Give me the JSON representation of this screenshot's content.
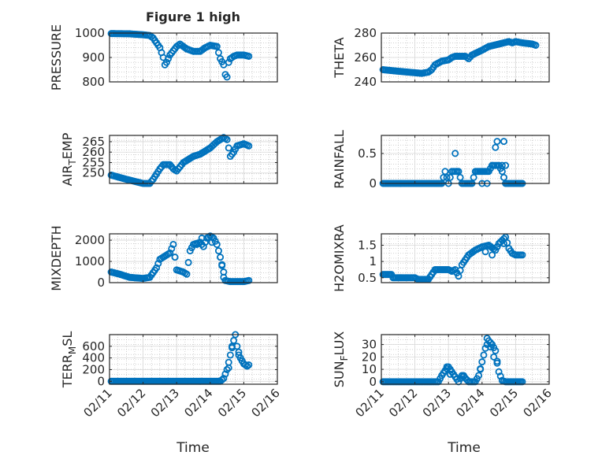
{
  "figure_title": "Figure 1 high",
  "marker_color": "#0072BD",
  "axis_color": "#262626",
  "grid_color": "#b4b4b4",
  "x_title": "Time",
  "x_ticks": [
    "02/11",
    "02/12",
    "02/13",
    "02/14",
    "02/15",
    "02/16"
  ],
  "chart_data": [
    {
      "id": "pressure",
      "type": "scatter",
      "col": 0,
      "row": 0,
      "ylabel": "PRESSURE",
      "xlim": [
        0,
        5
      ],
      "ylim": [
        800,
        1000
      ],
      "yticks": [
        800,
        900,
        1000
      ],
      "y_tick_labels": [
        "800",
        "900",
        "1000"
      ],
      "anchors": [
        [
          0.05,
          998
        ],
        [
          0.6,
          997
        ],
        [
          1.0,
          993
        ],
        [
          1.2,
          990
        ],
        [
          1.3,
          980
        ],
        [
          1.4,
          960
        ],
        [
          1.5,
          940
        ],
        [
          1.6,
          900
        ],
        [
          1.65,
          870
        ],
        [
          1.7,
          880
        ],
        [
          1.8,
          910
        ],
        [
          2.0,
          945
        ],
        [
          2.1,
          955
        ],
        [
          2.3,
          935
        ],
        [
          2.5,
          925
        ],
        [
          2.7,
          925
        ],
        [
          2.85,
          940
        ],
        [
          3.0,
          950
        ],
        [
          3.2,
          945
        ],
        [
          3.3,
          895
        ],
        [
          3.4,
          870
        ],
        [
          3.45,
          830
        ],
        [
          3.5,
          820
        ],
        [
          3.55,
          880
        ],
        [
          3.6,
          895
        ],
        [
          3.7,
          905
        ],
        [
          3.8,
          910
        ],
        [
          4.0,
          910
        ],
        [
          4.15,
          905
        ]
      ]
    },
    {
      "id": "theta",
      "type": "scatter",
      "col": 1,
      "row": 0,
      "ylabel": "THETA",
      "xlim": [
        0,
        5
      ],
      "ylim": [
        240,
        280
      ],
      "yticks": [
        240,
        260,
        280
      ],
      "y_tick_labels": [
        "240",
        "260",
        "280"
      ],
      "anchors": [
        [
          0.05,
          250
        ],
        [
          0.4,
          249
        ],
        [
          0.8,
          248
        ],
        [
          1.2,
          247
        ],
        [
          1.4,
          248
        ],
        [
          1.5,
          250
        ],
        [
          1.6,
          254
        ],
        [
          1.8,
          257
        ],
        [
          2.0,
          258
        ],
        [
          2.1,
          260
        ],
        [
          2.2,
          261
        ],
        [
          2.5,
          261
        ],
        [
          2.6,
          259
        ],
        [
          2.7,
          262
        ],
        [
          3.0,
          266
        ],
        [
          3.2,
          269
        ],
        [
          3.5,
          271
        ],
        [
          3.8,
          273
        ],
        [
          3.9,
          272
        ],
        [
          4.0,
          273
        ],
        [
          4.2,
          272
        ],
        [
          4.5,
          271
        ],
        [
          4.6,
          270
        ]
      ]
    },
    {
      "id": "air_temp",
      "type": "scatter",
      "col": 0,
      "row": 1,
      "ylabel": "AIR_TEMP",
      "xlim": [
        0,
        5
      ],
      "ylim": [
        245,
        268
      ],
      "yticks": [
        250,
        255,
        260,
        265
      ],
      "y_tick_labels": [
        "250",
        "255",
        "260",
        "265"
      ],
      "anchors": [
        [
          0.05,
          249
        ],
        [
          0.5,
          247
        ],
        [
          1.0,
          245
        ],
        [
          1.2,
          245
        ],
        [
          1.3,
          247
        ],
        [
          1.5,
          252
        ],
        [
          1.6,
          254
        ],
        [
          1.8,
          254
        ],
        [
          1.9,
          252
        ],
        [
          2.0,
          251
        ],
        [
          2.2,
          255
        ],
        [
          2.5,
          258
        ],
        [
          2.7,
          259
        ],
        [
          3.0,
          262
        ],
        [
          3.2,
          265
        ],
        [
          3.4,
          267
        ],
        [
          3.5,
          266
        ],
        [
          3.55,
          262
        ],
        [
          3.6,
          258
        ],
        [
          3.7,
          260
        ],
        [
          3.8,
          263
        ],
        [
          4.0,
          264
        ],
        [
          4.15,
          263
        ]
      ]
    },
    {
      "id": "rainfall",
      "type": "scatter",
      "col": 1,
      "row": 1,
      "ylabel": "RAINFALL",
      "xlim": [
        0,
        5
      ],
      "ylim": [
        0,
        0.8
      ],
      "yticks": [
        0,
        0.5
      ],
      "y_tick_labels": [
        "0",
        "0.5"
      ],
      "anchors": [
        [
          0.05,
          0
        ],
        [
          1.0,
          0
        ],
        [
          1.8,
          0
        ],
        [
          1.9,
          0.2
        ],
        [
          2.0,
          0
        ],
        [
          2.1,
          0.2
        ],
        [
          2.3,
          0.2
        ],
        [
          2.4,
          0
        ],
        [
          2.6,
          0
        ],
        [
          2.7,
          0
        ],
        [
          2.8,
          0.2
        ],
        [
          3.2,
          0.2
        ],
        [
          3.3,
          0.3
        ],
        [
          3.5,
          0.3
        ],
        [
          3.6,
          0.2
        ],
        [
          3.7,
          0
        ],
        [
          4.2,
          0
        ]
      ],
      "extra_points": [
        [
          2.2,
          0.5
        ],
        [
          3.0,
          0
        ],
        [
          3.15,
          0
        ],
        [
          3.4,
          0.6
        ],
        [
          3.45,
          0.7
        ],
        [
          3.6,
          0.3
        ],
        [
          3.65,
          0.7
        ],
        [
          3.7,
          0.3
        ],
        [
          3.3,
          0.3
        ],
        [
          2.25,
          0.2
        ]
      ]
    },
    {
      "id": "mixdepth",
      "type": "scatter",
      "col": 0,
      "row": 2,
      "ylabel": "MIXDEPTH",
      "xlim": [
        0,
        5
      ],
      "ylim": [
        0,
        2300
      ],
      "yticks": [
        0,
        1000,
        2000
      ],
      "y_tick_labels": [
        "0",
        "1000",
        "2000"
      ],
      "anchors": [
        [
          0.05,
          500
        ],
        [
          0.3,
          400
        ],
        [
          0.6,
          250
        ],
        [
          1.0,
          200
        ],
        [
          1.2,
          250
        ],
        [
          1.4,
          700
        ],
        [
          1.5,
          1100
        ],
        [
          1.6,
          1200
        ],
        [
          1.8,
          1400
        ],
        [
          1.9,
          1800
        ],
        [
          2.0,
          600
        ],
        [
          2.2,
          500
        ],
        [
          2.3,
          400
        ],
        [
          2.4,
          1500
        ],
        [
          2.5,
          1800
        ],
        [
          2.7,
          1900
        ],
        [
          2.8,
          1700
        ],
        [
          2.9,
          2100
        ],
        [
          3.0,
          2200
        ],
        [
          3.1,
          2100
        ],
        [
          3.2,
          1800
        ],
        [
          3.3,
          1200
        ],
        [
          3.4,
          500
        ],
        [
          3.45,
          100
        ],
        [
          3.6,
          50
        ],
        [
          4.0,
          50
        ],
        [
          4.15,
          100
        ]
      ],
      "extra_points": [
        [
          2.6,
          1800
        ],
        [
          2.75,
          2100
        ],
        [
          3.05,
          1900
        ],
        [
          3.35,
          800
        ],
        [
          3.4,
          250
        ]
      ]
    },
    {
      "id": "h2omixra",
      "type": "scatter",
      "col": 1,
      "row": 2,
      "ylabel": "H2OMIXRA",
      "xlim": [
        0,
        5
      ],
      "ylim": [
        0.35,
        1.85
      ],
      "yticks": [
        0.5,
        1,
        1.5
      ],
      "y_tick_labels": [
        "0.5",
        "1",
        "1.5"
      ],
      "anchors": [
        [
          0.05,
          0.6
        ],
        [
          0.3,
          0.6
        ],
        [
          0.35,
          0.5
        ],
        [
          0.8,
          0.5
        ],
        [
          1.0,
          0.5
        ],
        [
          1.1,
          0.45
        ],
        [
          1.4,
          0.45
        ],
        [
          1.5,
          0.6
        ],
        [
          1.6,
          0.75
        ],
        [
          2.0,
          0.75
        ],
        [
          2.1,
          0.7
        ],
        [
          2.2,
          0.75
        ],
        [
          2.3,
          0.55
        ],
        [
          2.4,
          0.9
        ],
        [
          2.6,
          1.2
        ],
        [
          2.8,
          1.35
        ],
        [
          3.0,
          1.45
        ],
        [
          3.2,
          1.5
        ],
        [
          3.4,
          1.35
        ],
        [
          3.5,
          1.55
        ],
        [
          3.6,
          1.65
        ],
        [
          3.7,
          1.75
        ],
        [
          3.8,
          1.4
        ],
        [
          3.9,
          1.25
        ],
        [
          4.0,
          1.2
        ],
        [
          4.2,
          1.2
        ]
      ],
      "extra_points": [
        [
          3.1,
          1.3
        ],
        [
          3.3,
          1.2
        ],
        [
          3.45,
          1.45
        ],
        [
          3.65,
          1.55
        ]
      ]
    },
    {
      "id": "terr_msl",
      "type": "scatter",
      "col": 0,
      "row": 3,
      "ylabel": "TERR_MSL",
      "xlim": [
        0,
        5
      ],
      "ylim": [
        -50,
        800
      ],
      "yticks": [
        0,
        200,
        400,
        600
      ],
      "y_tick_labels": [
        "0",
        "200",
        "400",
        "600"
      ],
      "anchors": [
        [
          0.05,
          0
        ],
        [
          1.0,
          0
        ],
        [
          2.0,
          0
        ],
        [
          3.0,
          0
        ],
        [
          3.3,
          0
        ],
        [
          3.4,
          50
        ],
        [
          3.5,
          200
        ],
        [
          3.6,
          450
        ],
        [
          3.7,
          700
        ],
        [
          3.75,
          800
        ],
        [
          3.8,
          600
        ],
        [
          3.9,
          400
        ],
        [
          4.0,
          300
        ],
        [
          4.1,
          260
        ],
        [
          4.15,
          280
        ]
      ],
      "extra_points": [
        [
          3.55,
          230
        ],
        [
          3.65,
          600
        ],
        [
          3.85,
          450
        ],
        [
          3.95,
          350
        ]
      ]
    },
    {
      "id": "sun_flux",
      "type": "scatter",
      "col": 1,
      "row": 3,
      "ylabel": "SUN_FLUX",
      "xlim": [
        0,
        5
      ],
      "ylim": [
        -2,
        38
      ],
      "yticks": [
        0,
        10,
        20,
        30
      ],
      "y_tick_labels": [
        "0",
        "10",
        "20",
        "30"
      ],
      "anchors": [
        [
          0.05,
          0
        ],
        [
          1.5,
          0
        ],
        [
          1.7,
          0
        ],
        [
          1.8,
          5
        ],
        [
          1.9,
          9
        ],
        [
          2.0,
          12
        ],
        [
          2.1,
          8
        ],
        [
          2.2,
          4
        ],
        [
          2.3,
          0
        ],
        [
          2.4,
          5
        ],
        [
          2.5,
          3
        ],
        [
          2.6,
          0
        ],
        [
          2.8,
          0
        ],
        [
          2.9,
          5
        ],
        [
          3.0,
          16
        ],
        [
          3.1,
          27
        ],
        [
          3.2,
          33
        ],
        [
          3.3,
          30
        ],
        [
          3.4,
          25
        ],
        [
          3.5,
          8
        ],
        [
          3.6,
          1
        ],
        [
          3.7,
          0
        ],
        [
          4.2,
          0
        ]
      ],
      "extra_points": [
        [
          1.95,
          12
        ],
        [
          2.05,
          6
        ],
        [
          2.45,
          5
        ],
        [
          2.95,
          10
        ],
        [
          3.15,
          35
        ],
        [
          3.25,
          28
        ],
        [
          3.35,
          20
        ],
        [
          3.45,
          15
        ]
      ]
    }
  ]
}
